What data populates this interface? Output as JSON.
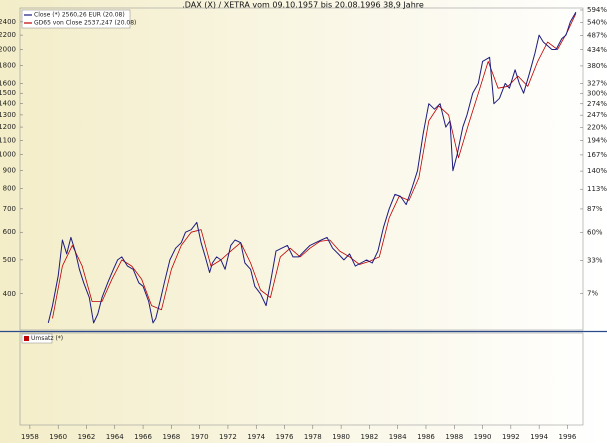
{
  "chart_data": {
    "type": "line",
    "title": ".DAX (X) / XETRA vom 09.10.1957 bis 20.08.1996 38,9 Jahre",
    "log_scale": true,
    "y2scale": "log-growth",
    "volume_label": "Umsatz (*)",
    "volume_color": "#c00000",
    "xlim": [
      1957.3,
      1997.1
    ],
    "xticks": [
      1958,
      1960,
      1962,
      1964,
      1966,
      1968,
      1970,
      1972,
      1974,
      1976,
      1978,
      1980,
      1982,
      1984,
      1986,
      1988,
      1990,
      1992,
      1994,
      1996
    ],
    "ylim": [
      315,
      2630
    ],
    "yticks": [
      400,
      500,
      600,
      700,
      800,
      900,
      1000,
      1100,
      1200,
      1300,
      1400,
      1500,
      1600,
      1800,
      2000,
      2200,
      2400
    ],
    "y2lim": [
      -15.8,
      603.2
    ],
    "y2ticks": [
      {
        "value": 7,
        "label": "7%"
      },
      {
        "value": 33,
        "label": "33%"
      },
      {
        "value": 60,
        "label": "60%"
      },
      {
        "value": 87,
        "label": "87%"
      },
      {
        "value": 113,
        "label": "113%"
      },
      {
        "value": 140,
        "label": "140%"
      },
      {
        "value": 167,
        "label": "167%"
      },
      {
        "value": 194,
        "label": "194%"
      },
      {
        "value": 220,
        "label": "220%"
      },
      {
        "value": 247,
        "label": "247%"
      },
      {
        "value": 274,
        "label": "274%"
      },
      {
        "value": 300,
        "label": "300%"
      },
      {
        "value": 327,
        "label": "327%"
      },
      {
        "value": 380,
        "label": "380%"
      },
      {
        "value": 434,
        "label": "434%"
      },
      {
        "value": 487,
        "label": "487%"
      },
      {
        "value": 540,
        "label": "540%"
      },
      {
        "value": 594,
        "label": "594%"
      }
    ],
    "series": [
      {
        "name": "Close (*) 2560,26 EUR (20.08)",
        "color": "#1c1c80",
        "x": [
          1959.3,
          1959.6,
          1960.0,
          1960.3,
          1960.6,
          1960.9,
          1961.2,
          1961.5,
          1961.8,
          1962.2,
          1962.5,
          1962.8,
          1963.1,
          1963.5,
          1963.9,
          1964.2,
          1964.5,
          1964.9,
          1965.3,
          1965.7,
          1966.0,
          1966.4,
          1966.7,
          1966.9,
          1967.2,
          1967.5,
          1967.9,
          1968.3,
          1968.7,
          1969.0,
          1969.4,
          1969.8,
          1970.1,
          1970.4,
          1970.7,
          1970.9,
          1971.2,
          1971.5,
          1971.8,
          1972.2,
          1972.5,
          1972.9,
          1973.2,
          1973.6,
          1973.9,
          1974.3,
          1974.7,
          1975.0,
          1975.4,
          1975.8,
          1976.2,
          1976.6,
          1977.0,
          1977.4,
          1977.8,
          1978.2,
          1978.6,
          1979.0,
          1979.4,
          1979.8,
          1980.2,
          1980.6,
          1981.0,
          1981.4,
          1981.8,
          1982.2,
          1982.6,
          1983.0,
          1983.4,
          1983.8,
          1984.2,
          1984.6,
          1985.0,
          1985.4,
          1985.8,
          1986.2,
          1986.6,
          1987.0,
          1987.4,
          1987.7,
          1987.9,
          1988.2,
          1988.6,
          1988.9,
          1989.3,
          1989.7,
          1990.0,
          1990.5,
          1990.8,
          1991.2,
          1991.6,
          1991.9,
          1992.3,
          1992.6,
          1992.9,
          1993.3,
          1993.7,
          1994.0,
          1994.3,
          1994.6,
          1994.9,
          1995.2,
          1995.6,
          1995.9,
          1996.2,
          1996.6
        ],
        "values": [
          330,
          370,
          450,
          570,
          520,
          580,
          530,
          470,
          430,
          390,
          330,
          350,
          390,
          430,
          470,
          500,
          510,
          480,
          470,
          430,
          420,
          380,
          330,
          340,
          380,
          430,
          500,
          540,
          560,
          600,
          610,
          640,
          560,
          510,
          460,
          490,
          510,
          500,
          470,
          550,
          570,
          560,
          490,
          470,
          420,
          400,
          370,
          430,
          530,
          540,
          550,
          510,
          510,
          530,
          550,
          560,
          570,
          580,
          540,
          520,
          500,
          520,
          480,
          490,
          500,
          490,
          530,
          620,
          700,
          770,
          760,
          720,
          800,
          900,
          1150,
          1400,
          1350,
          1400,
          1200,
          1250,
          900,
          1000,
          1200,
          1300,
          1500,
          1600,
          1850,
          1900,
          1400,
          1450,
          1600,
          1550,
          1750,
          1600,
          1500,
          1700,
          1950,
          2200,
          2100,
          2050,
          2000,
          2000,
          2150,
          2200,
          2400,
          2560.26
        ]
      },
      {
        "name": "GD65 von Close 2537,247 (20.08)",
        "color": "#c00000",
        "x": [
          1959.6,
          1960.3,
          1961.0,
          1961.7,
          1962.4,
          1963.1,
          1963.8,
          1964.5,
          1965.2,
          1965.9,
          1966.6,
          1967.3,
          1968.0,
          1968.7,
          1969.4,
          1970.1,
          1970.8,
          1971.5,
          1972.2,
          1972.9,
          1973.6,
          1974.3,
          1975.0,
          1975.7,
          1976.4,
          1977.1,
          1977.8,
          1978.5,
          1979.2,
          1979.9,
          1980.6,
          1981.3,
          1982.0,
          1982.7,
          1983.4,
          1984.1,
          1984.8,
          1985.5,
          1986.2,
          1986.9,
          1987.6,
          1988.3,
          1989.0,
          1989.7,
          1990.4,
          1991.1,
          1991.8,
          1992.5,
          1993.2,
          1993.9,
          1994.6,
          1995.3,
          1996.0,
          1996.6
        ],
        "values": [
          340,
          480,
          550,
          480,
          380,
          380,
          440,
          500,
          480,
          440,
          370,
          360,
          470,
          550,
          600,
          610,
          480,
          500,
          530,
          560,
          490,
          410,
          390,
          510,
          540,
          510,
          540,
          565,
          570,
          530,
          510,
          485,
          495,
          510,
          660,
          760,
          740,
          860,
          1250,
          1380,
          1300,
          980,
          1220,
          1500,
          1850,
          1550,
          1570,
          1680,
          1570,
          1850,
          2100,
          2000,
          2250,
          2537.247
        ]
      }
    ]
  }
}
